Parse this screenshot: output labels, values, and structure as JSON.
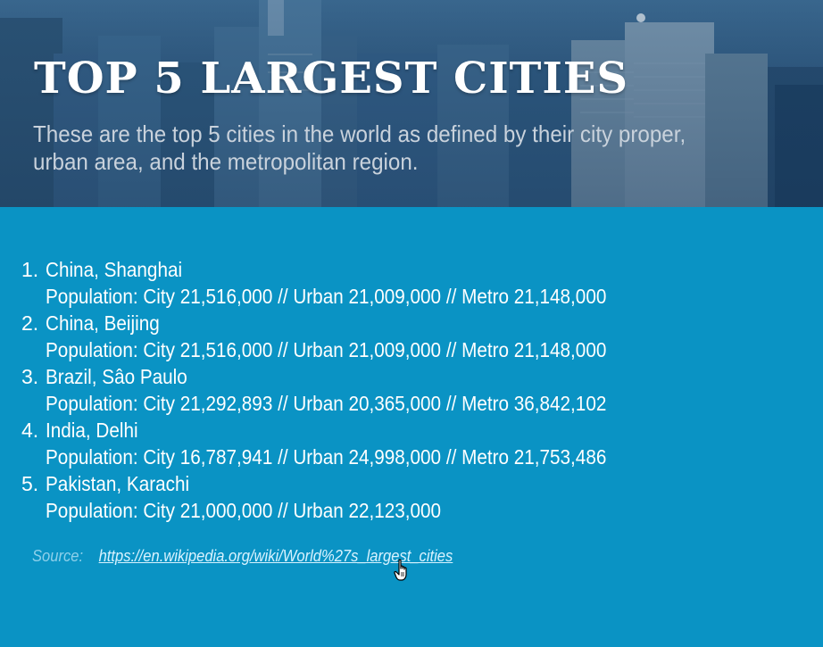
{
  "header": {
    "title": "TOP 5 LARGEST CITIES",
    "subtitle": "These are the top 5 cities in the world as defined by their city proper, urban area, and the metropolitan region."
  },
  "cities": [
    {
      "number": "1.",
      "name": "China, Shanghai",
      "population": "Population: City 21,516,000 // Urban 21,009,000 // Metro 21,148,000"
    },
    {
      "number": "2.",
      "name": "China, Beijing",
      "population": "Population: City 21,516,000 // Urban 21,009,000 // Metro 21,148,000"
    },
    {
      "number": "3.",
      "name": "Brazil, Sâo Paulo",
      "population": "Population: City 21,292,893 // Urban 20,365,000 // Metro 36,842,102"
    },
    {
      "number": "4.",
      "name": "India, Delhi",
      "population": "Population: City 16,787,941 // Urban 24,998,000 // Metro 21,753,486"
    },
    {
      "number": "5.",
      "name": "Pakistan, Karachi",
      "population": "Population: City 21,000,000 // Urban 22,123,000"
    }
  ],
  "source": {
    "label": "Source:",
    "link_text": "https://en.wikipedia.org/wiki/World%27s_largest_cities",
    "link_href": "https://en.wikipedia.org/wiki/World%27s_largest_cities"
  },
  "colors": {
    "background": "#0a93c4",
    "source_label": "#8ed0ea"
  },
  "icons": {
    "cursor": "hand-pointer-icon"
  }
}
